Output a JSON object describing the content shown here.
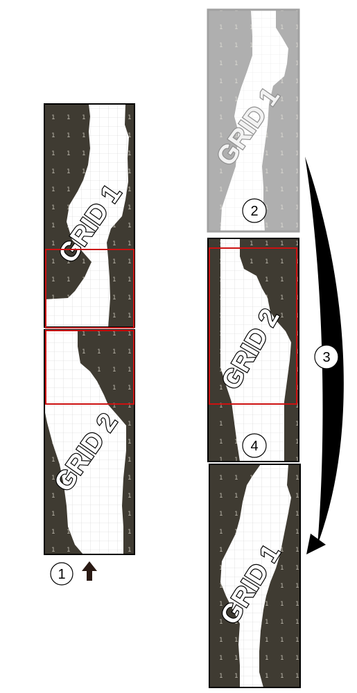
{
  "strips": {
    "left_top_label": "GRID 1",
    "left_bottom_label": "GRID 2",
    "right_top_label": "GRID 1",
    "right_middle_label": "GRID 2",
    "right_bottom_label": "GRID 1"
  },
  "steps": [
    "1",
    "2",
    "3",
    "4"
  ],
  "icons": [
    "up-arrow-icon",
    "curved-arrow-icon"
  ],
  "colors": {
    "rock": "#3f3b32",
    "channel": "#ffffff",
    "highlight": "#cc1111",
    "ghost": "#b8b8b8",
    "arrow": "#000000"
  }
}
